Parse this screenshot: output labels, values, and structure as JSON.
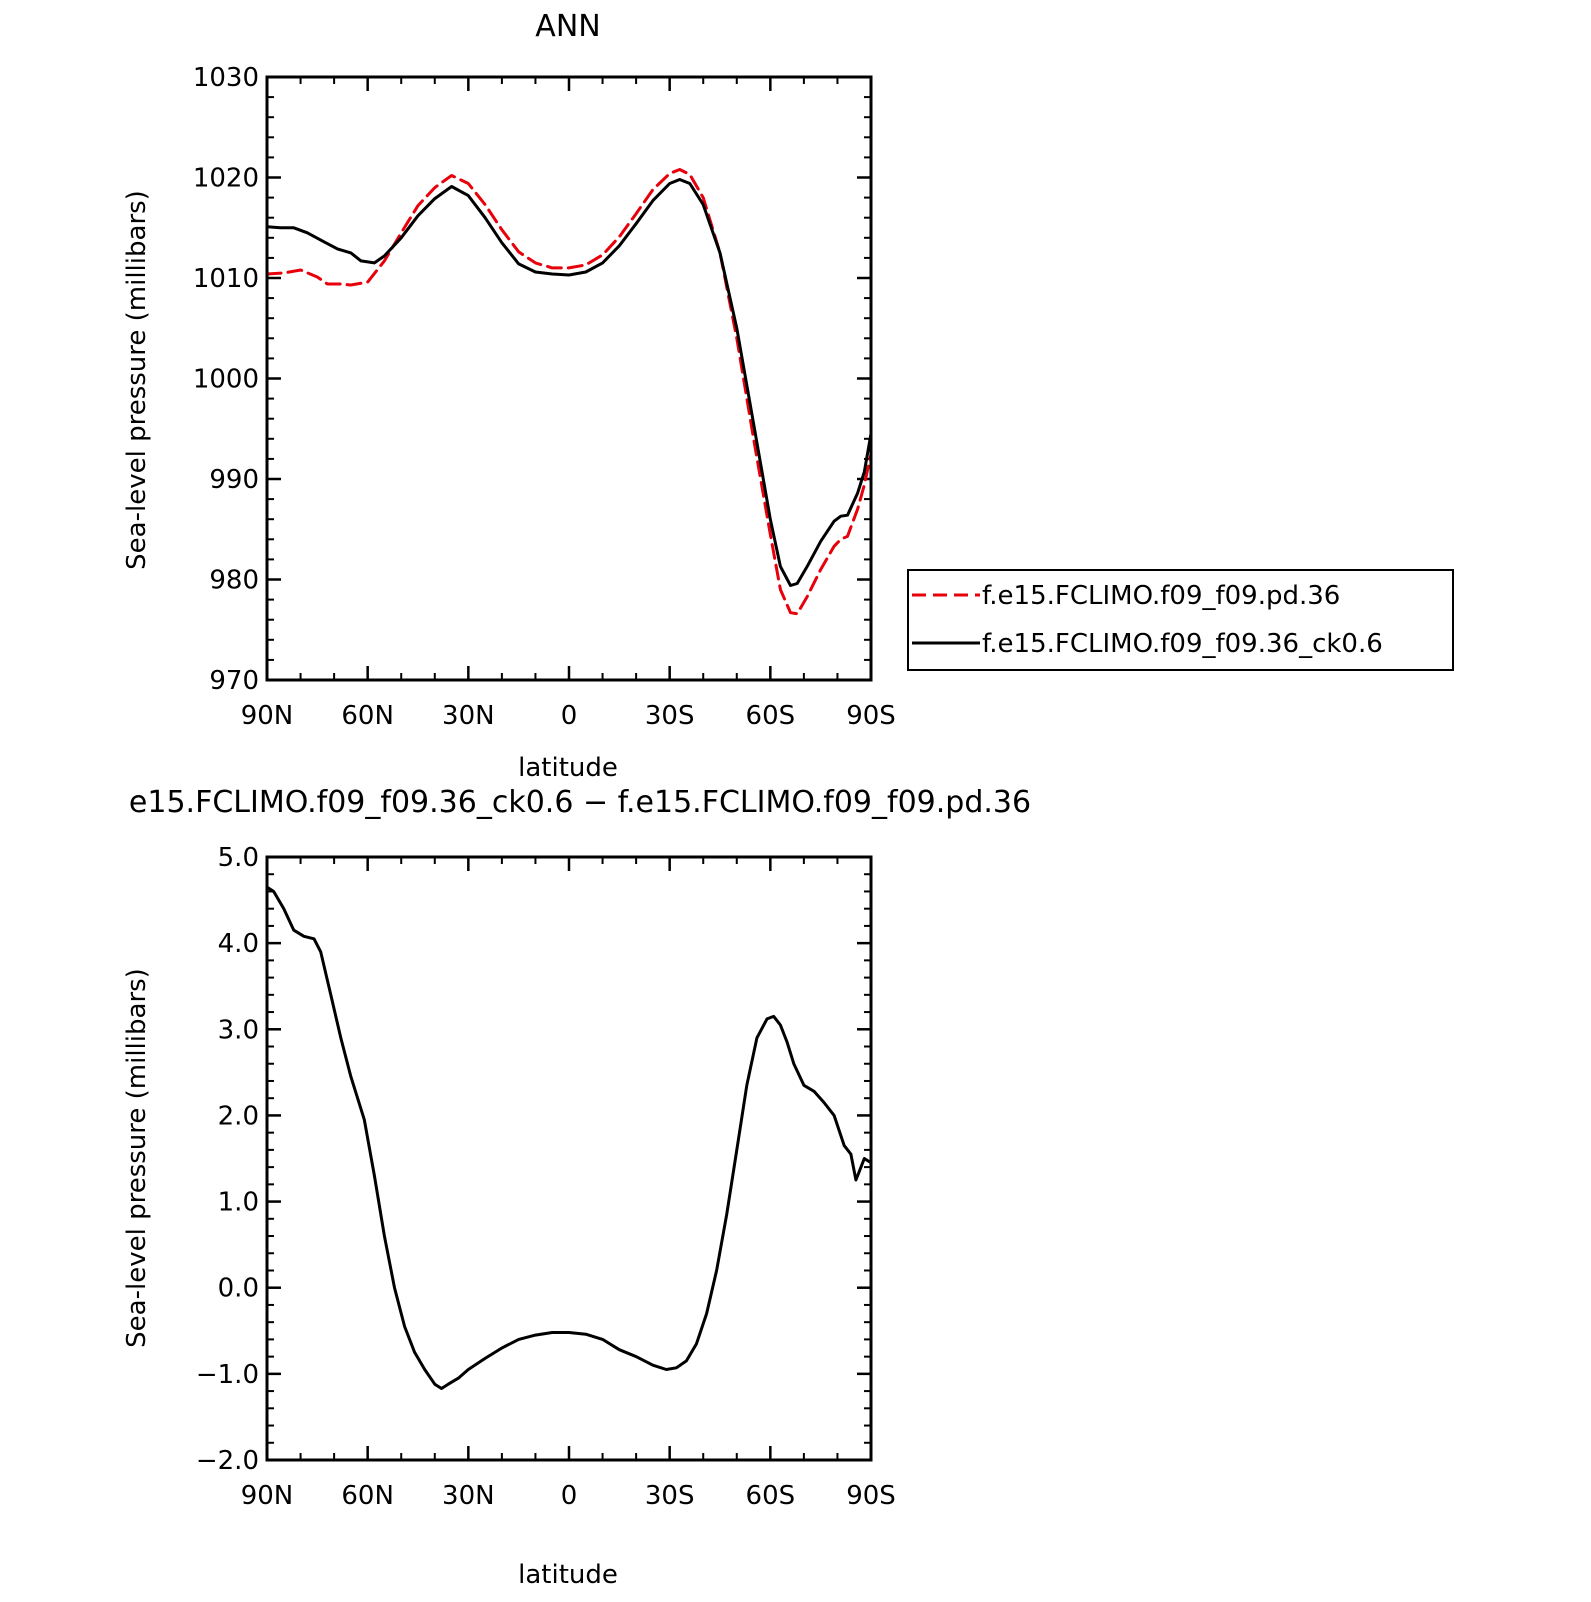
{
  "chart_data": [
    {
      "type": "line",
      "title": "ANN",
      "xlabel": "latitude",
      "ylabel": "Sea-level pressure (millibars)",
      "xlim": [
        90,
        -90
      ],
      "ylim": [
        970,
        1030
      ],
      "x_ticks": [
        {
          "value": 90,
          "label": "90N"
        },
        {
          "value": 60,
          "label": "60N"
        },
        {
          "value": 30,
          "label": "30N"
        },
        {
          "value": 0,
          "label": "0"
        },
        {
          "value": -30,
          "label": "30S"
        },
        {
          "value": -60,
          "label": "60S"
        },
        {
          "value": -90,
          "label": "90S"
        }
      ],
      "y_ticks": [
        {
          "value": 970,
          "label": "970"
        },
        {
          "value": 980,
          "label": "980"
        },
        {
          "value": 990,
          "label": "990"
        },
        {
          "value": 1000,
          "label": "1000"
        },
        {
          "value": 1010,
          "label": "1010"
        },
        {
          "value": 1020,
          "label": "1020"
        },
        {
          "value": 1030,
          "label": "1030"
        }
      ],
      "legend_position": "right",
      "series": [
        {
          "name": "f.e15.FCLIMO.f09_f09.pd.36",
          "color": "#e8000b",
          "dash": true,
          "points": [
            [
              90,
              1010.4
            ],
            [
              85,
              1010.5
            ],
            [
              80,
              1010.8
            ],
            [
              75,
              1010.1
            ],
            [
              72,
              1009.4
            ],
            [
              68,
              1009.4
            ],
            [
              65,
              1009.3
            ],
            [
              60,
              1009.6
            ],
            [
              55,
              1011.7
            ],
            [
              50,
              1014.5
            ],
            [
              45,
              1017.2
            ],
            [
              40,
              1019.0
            ],
            [
              35,
              1020.2
            ],
            [
              30,
              1019.4
            ],
            [
              25,
              1017.3
            ],
            [
              20,
              1014.8
            ],
            [
              15,
              1012.6
            ],
            [
              10,
              1011.5
            ],
            [
              5,
              1011.0
            ],
            [
              0,
              1011.0
            ],
            [
              -5,
              1011.3
            ],
            [
              -10,
              1012.3
            ],
            [
              -15,
              1014.1
            ],
            [
              -20,
              1016.4
            ],
            [
              -25,
              1018.8
            ],
            [
              -30,
              1020.4
            ],
            [
              -33,
              1020.8
            ],
            [
              -36,
              1020.3
            ],
            [
              -40,
              1018.0
            ],
            [
              -45,
              1012.5
            ],
            [
              -50,
              1004.0
            ],
            [
              -55,
              994.0
            ],
            [
              -60,
              984.5
            ],
            [
              -63,
              979.0
            ],
            [
              -66,
              976.7
            ],
            [
              -68,
              976.6
            ],
            [
              -71,
              978.3
            ],
            [
              -75,
              981.0
            ],
            [
              -79,
              983.3
            ],
            [
              -81,
              984.0
            ],
            [
              -83,
              984.3
            ],
            [
              -86,
              987.0
            ],
            [
              -88,
              989.4
            ],
            [
              -90,
              992.5
            ]
          ]
        },
        {
          "name": "f.e15.FCLIMO.f09_f09.36_ck0.6",
          "color": "#000000",
          "dash": false,
          "points": [
            [
              90,
              1015.1
            ],
            [
              86,
              1015.0
            ],
            [
              82,
              1015.0
            ],
            [
              78,
              1014.5
            ],
            [
              73,
              1013.6
            ],
            [
              69,
              1012.9
            ],
            [
              65,
              1012.5
            ],
            [
              62,
              1011.7
            ],
            [
              58,
              1011.5
            ],
            [
              55,
              1012.2
            ],
            [
              50,
              1014.0
            ],
            [
              45,
              1016.2
            ],
            [
              40,
              1017.9
            ],
            [
              35,
              1019.1
            ],
            [
              30,
              1018.2
            ],
            [
              25,
              1016.0
            ],
            [
              20,
              1013.5
            ],
            [
              15,
              1011.4
            ],
            [
              10,
              1010.6
            ],
            [
              5,
              1010.4
            ],
            [
              0,
              1010.3
            ],
            [
              -5,
              1010.6
            ],
            [
              -10,
              1011.5
            ],
            [
              -15,
              1013.2
            ],
            [
              -20,
              1015.4
            ],
            [
              -25,
              1017.7
            ],
            [
              -30,
              1019.4
            ],
            [
              -33,
              1019.8
            ],
            [
              -36,
              1019.4
            ],
            [
              -40,
              1017.3
            ],
            [
              -45,
              1012.5
            ],
            [
              -50,
              1005.0
            ],
            [
              -55,
              995.5
            ],
            [
              -60,
              986.0
            ],
            [
              -63,
              981.3
            ],
            [
              -66,
              979.4
            ],
            [
              -68,
              979.6
            ],
            [
              -71,
              981.3
            ],
            [
              -75,
              983.8
            ],
            [
              -79,
              985.8
            ],
            [
              -81,
              986.3
            ],
            [
              -83,
              986.4
            ],
            [
              -86,
              988.6
            ],
            [
              -88,
              990.7
            ],
            [
              -90,
              994.5
            ]
          ]
        }
      ]
    },
    {
      "type": "line",
      "title": "e15.FCLIMO.f09_f09.36_ck0.6 − f.e15.FCLIMO.f09_f09.pd.36",
      "xlabel": "latitude",
      "ylabel": "Sea-level pressure (millibars)",
      "xlim": [
        90,
        -90
      ],
      "ylim": [
        -2.0,
        5.0
      ],
      "x_ticks": [
        {
          "value": 90,
          "label": "90N"
        },
        {
          "value": 60,
          "label": "60N"
        },
        {
          "value": 30,
          "label": "30N"
        },
        {
          "value": 0,
          "label": "0"
        },
        {
          "value": -30,
          "label": "30S"
        },
        {
          "value": -60,
          "label": "60S"
        },
        {
          "value": -90,
          "label": "90S"
        }
      ],
      "y_ticks": [
        {
          "value": -2.0,
          "label": "−2.0"
        },
        {
          "value": -1.0,
          "label": "−1.0"
        },
        {
          "value": 0.0,
          "label": "0.0"
        },
        {
          "value": 1.0,
          "label": "1.0"
        },
        {
          "value": 2.0,
          "label": "2.0"
        },
        {
          "value": 3.0,
          "label": "3.0"
        },
        {
          "value": 4.0,
          "label": "4.0"
        },
        {
          "value": 5.0,
          "label": "5.0"
        }
      ],
      "series": [
        {
          "name": "",
          "color": "#000000",
          "dash": false,
          "points": [
            [
              90,
              4.65
            ],
            [
              88,
              4.6
            ],
            [
              85,
              4.4
            ],
            [
              82,
              4.15
            ],
            [
              79,
              4.08
            ],
            [
              76,
              4.05
            ],
            [
              74,
              3.9
            ],
            [
              71,
              3.4
            ],
            [
              68,
              2.9
            ],
            [
              65,
              2.45
            ],
            [
              61,
              1.95
            ],
            [
              58,
              1.3
            ],
            [
              55,
              0.6
            ],
            [
              52,
              0.0
            ],
            [
              49,
              -0.45
            ],
            [
              46,
              -0.75
            ],
            [
              43,
              -0.95
            ],
            [
              40,
              -1.12
            ],
            [
              38,
              -1.17
            ],
            [
              36,
              -1.12
            ],
            [
              33,
              -1.05
            ],
            [
              30,
              -0.95
            ],
            [
              25,
              -0.82
            ],
            [
              20,
              -0.7
            ],
            [
              15,
              -0.6
            ],
            [
              10,
              -0.55
            ],
            [
              5,
              -0.52
            ],
            [
              0,
              -0.52
            ],
            [
              -5,
              -0.54
            ],
            [
              -10,
              -0.6
            ],
            [
              -15,
              -0.72
            ],
            [
              -20,
              -0.8
            ],
            [
              -25,
              -0.9
            ],
            [
              -29,
              -0.95
            ],
            [
              -32,
              -0.93
            ],
            [
              -35,
              -0.85
            ],
            [
              -38,
              -0.65
            ],
            [
              -41,
              -0.3
            ],
            [
              -44,
              0.2
            ],
            [
              -47,
              0.85
            ],
            [
              -50,
              1.6
            ],
            [
              -53,
              2.35
            ],
            [
              -56,
              2.9
            ],
            [
              -59,
              3.12
            ],
            [
              -61,
              3.15
            ],
            [
              -63,
              3.05
            ],
            [
              -65,
              2.85
            ],
            [
              -67,
              2.6
            ],
            [
              -70,
              2.35
            ],
            [
              -73,
              2.28
            ],
            [
              -76,
              2.15
            ],
            [
              -79,
              2.0
            ],
            [
              -82,
              1.65
            ],
            [
              -84,
              1.55
            ],
            [
              -85.5,
              1.25
            ],
            [
              -86.5,
              1.35
            ],
            [
              -88,
              1.5
            ],
            [
              -90,
              1.45
            ]
          ]
        }
      ]
    }
  ]
}
